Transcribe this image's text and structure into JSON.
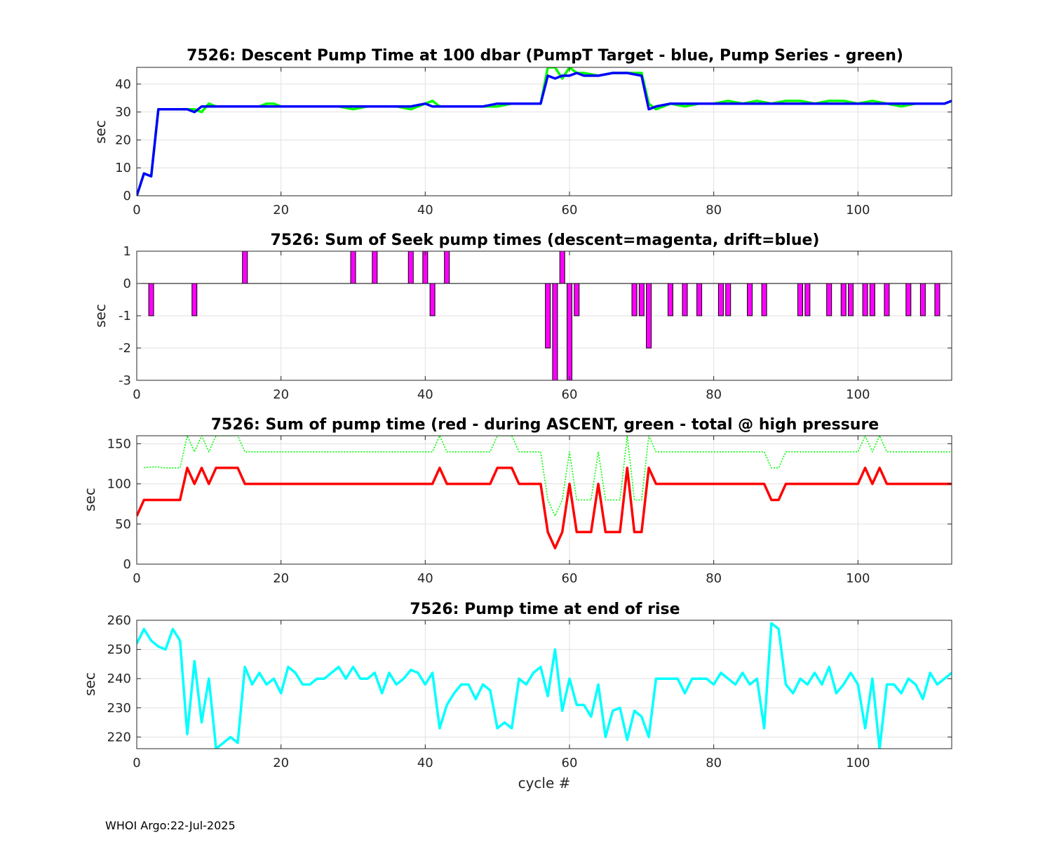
{
  "footer": "WHOI Argo:22-Jul-2025",
  "colors": {
    "target": "#0000ff",
    "pump_series": "#00ff00",
    "descent": "#ff00ff",
    "ascent": "#ff0000",
    "total_high_pressure": "#00ff00",
    "end_of_rise": "#00ffff"
  },
  "chart_data": [
    {
      "type": "line",
      "title": "7526: Descent Pump Time at 100 dbar (PumpT Target - blue, Pump Series - green)",
      "xlabel": "",
      "ylabel": "sec",
      "xlim": [
        0,
        113
      ],
      "ylim": [
        0,
        46
      ],
      "xticks": [
        0,
        20,
        40,
        60,
        80,
        100
      ],
      "yticks": [
        0,
        10,
        20,
        30,
        40
      ],
      "grid": true,
      "series": [
        {
          "name": "Pump Series",
          "color": "#00ff00",
          "x": [
            0,
            1,
            2,
            3,
            4,
            5,
            6,
            7,
            8,
            9,
            10,
            11,
            12,
            13,
            14,
            15,
            16,
            17,
            18,
            19,
            20,
            22,
            24,
            26,
            28,
            30,
            32,
            34,
            36,
            38,
            40,
            41,
            42,
            44,
            46,
            48,
            50,
            52,
            54,
            56,
            57,
            58,
            59,
            60,
            61,
            62,
            64,
            66,
            68,
            70,
            71,
            72,
            74,
            76,
            78,
            80,
            82,
            84,
            86,
            88,
            90,
            92,
            94,
            96,
            98,
            100,
            102,
            104,
            106,
            108,
            110,
            112,
            113
          ],
          "y": [
            0,
            8,
            7,
            31,
            31,
            31,
            31,
            31,
            31,
            30,
            33,
            32,
            32,
            32,
            32,
            32,
            32,
            32,
            33,
            33,
            32,
            32,
            32,
            32,
            32,
            31,
            32,
            32,
            32,
            31,
            33,
            34,
            32,
            32,
            32,
            32,
            32,
            33,
            33,
            33,
            46,
            46,
            42,
            46,
            44,
            44,
            43,
            44,
            44,
            44,
            33,
            31,
            33,
            32,
            33,
            33,
            34,
            33,
            34,
            33,
            34,
            34,
            33,
            34,
            34,
            33,
            34,
            33,
            32,
            33,
            33,
            33,
            34
          ]
        },
        {
          "name": "PumpT Target",
          "color": "#0000ff",
          "x": [
            0,
            1,
            2,
            3,
            4,
            5,
            6,
            7,
            8,
            9,
            10,
            11,
            12,
            13,
            14,
            15,
            16,
            17,
            18,
            19,
            20,
            22,
            24,
            26,
            28,
            30,
            32,
            34,
            36,
            38,
            40,
            41,
            42,
            44,
            46,
            48,
            50,
            52,
            54,
            56,
            57,
            58,
            59,
            60,
            61,
            62,
            64,
            66,
            68,
            70,
            71,
            72,
            74,
            76,
            78,
            80,
            82,
            84,
            86,
            88,
            90,
            92,
            94,
            96,
            98,
            100,
            102,
            104,
            106,
            108,
            110,
            112,
            113
          ],
          "y": [
            0,
            8,
            7,
            31,
            31,
            31,
            31,
            31,
            30,
            32,
            32,
            32,
            32,
            32,
            32,
            32,
            32,
            32,
            32,
            32,
            32,
            32,
            32,
            32,
            32,
            32,
            32,
            32,
            32,
            32,
            33,
            32,
            32,
            32,
            32,
            32,
            33,
            33,
            33,
            33,
            43,
            42,
            43,
            43,
            44,
            43,
            43,
            44,
            44,
            43,
            31,
            32,
            33,
            33,
            33,
            33,
            33,
            33,
            33,
            33,
            33,
            33,
            33,
            33,
            33,
            33,
            33,
            33,
            33,
            33,
            33,
            33,
            34
          ]
        }
      ]
    },
    {
      "type": "bar",
      "title": "7526: Sum of Seek pump times (descent=magenta, drift=blue)",
      "xlabel": "",
      "ylabel": "sec",
      "xlim": [
        0,
        113
      ],
      "ylim": [
        -3,
        1
      ],
      "xticks": [
        0,
        20,
        40,
        60,
        80,
        100
      ],
      "yticks": [
        1,
        0,
        -1,
        -2,
        -3
      ],
      "grid": true,
      "series": [
        {
          "name": "descent",
          "color": "#ff00ff",
          "x": [
            2,
            8,
            15,
            30,
            33,
            38,
            40,
            41,
            43,
            57,
            58,
            59,
            60,
            61,
            69,
            70,
            71,
            74,
            76,
            78,
            81,
            82,
            85,
            87,
            92,
            93,
            96,
            98,
            99,
            101,
            102,
            104,
            107,
            109,
            111
          ],
          "y": [
            -1,
            -1,
            1,
            1,
            1,
            1,
            1,
            -1,
            1,
            -2,
            -3,
            1,
            -3,
            -1,
            -1,
            -1,
            -2,
            -1,
            -1,
            -1,
            -1,
            -1,
            -1,
            -1,
            -1,
            -1,
            -1,
            -1,
            -1,
            -1,
            -1,
            -1,
            -1,
            -1,
            -1
          ]
        }
      ]
    },
    {
      "type": "line",
      "title": "7526: Sum of pump time (red - during ASCENT, green - total @ high pressure",
      "xlabel": "",
      "ylabel": "sec",
      "xlim": [
        0,
        113
      ],
      "ylim": [
        0,
        160
      ],
      "xticks": [
        0,
        20,
        40,
        60,
        80,
        100
      ],
      "yticks": [
        0,
        50,
        100,
        150
      ],
      "grid": true,
      "series": [
        {
          "name": "total @ high pressure",
          "color": "#00ff00",
          "dashed": true,
          "x": [
            1,
            2,
            3,
            4,
            5,
            6,
            7,
            8,
            9,
            10,
            11,
            12,
            13,
            14,
            15,
            16,
            17,
            18,
            19,
            20,
            25,
            30,
            35,
            40,
            41,
            42,
            43,
            44,
            45,
            46,
            47,
            48,
            49,
            50,
            51,
            52,
            53,
            54,
            55,
            56,
            57,
            58,
            59,
            60,
            61,
            62,
            63,
            64,
            65,
            66,
            67,
            68,
            69,
            70,
            71,
            72,
            73,
            74,
            75,
            80,
            85,
            87,
            88,
            89,
            90,
            95,
            100,
            101,
            102,
            103,
            104,
            105,
            110,
            113
          ],
          "y": [
            120,
            121,
            121,
            120,
            120,
            120,
            160,
            140,
            160,
            140,
            160,
            160,
            160,
            160,
            140,
            140,
            140,
            140,
            140,
            140,
            140,
            140,
            140,
            140,
            140,
            160,
            140,
            140,
            140,
            140,
            140,
            140,
            140,
            160,
            160,
            160,
            140,
            140,
            140,
            140,
            80,
            60,
            80,
            140,
            80,
            80,
            80,
            140,
            80,
            80,
            80,
            160,
            80,
            80,
            160,
            140,
            140,
            140,
            140,
            140,
            140,
            140,
            120,
            120,
            140,
            140,
            140,
            160,
            140,
            160,
            140,
            140,
            140,
            140
          ]
        },
        {
          "name": "during ASCENT",
          "color": "#ff0000",
          "dashed": false,
          "x": [
            0,
            1,
            2,
            3,
            4,
            5,
            6,
            7,
            8,
            9,
            10,
            11,
            12,
            13,
            14,
            15,
            16,
            17,
            18,
            19,
            20,
            25,
            30,
            35,
            40,
            41,
            42,
            43,
            44,
            45,
            46,
            47,
            48,
            49,
            50,
            51,
            52,
            53,
            54,
            55,
            56,
            57,
            58,
            59,
            60,
            61,
            62,
            63,
            64,
            65,
            66,
            67,
            68,
            69,
            70,
            71,
            72,
            73,
            74,
            75,
            80,
            85,
            87,
            88,
            89,
            90,
            95,
            100,
            101,
            102,
            103,
            104,
            105,
            110,
            113
          ],
          "y": [
            60,
            80,
            80,
            80,
            80,
            80,
            80,
            120,
            100,
            120,
            100,
            120,
            120,
            120,
            120,
            100,
            100,
            100,
            100,
            100,
            100,
            100,
            100,
            100,
            100,
            100,
            120,
            100,
            100,
            100,
            100,
            100,
            100,
            100,
            120,
            120,
            120,
            100,
            100,
            100,
            100,
            40,
            20,
            40,
            100,
            40,
            40,
            40,
            100,
            40,
            40,
            40,
            120,
            40,
            40,
            120,
            100,
            100,
            100,
            100,
            100,
            100,
            100,
            80,
            80,
            100,
            100,
            100,
            120,
            100,
            120,
            100,
            100,
            100,
            100
          ]
        }
      ]
    },
    {
      "type": "line",
      "title": "7526: Pump time at end of rise",
      "xlabel": "cycle #",
      "ylabel": "sec",
      "xlim": [
        0,
        113
      ],
      "ylim": [
        216,
        260
      ],
      "xticks": [
        0,
        20,
        40,
        60,
        80,
        100
      ],
      "yticks": [
        220,
        230,
        240,
        250,
        260
      ],
      "grid": true,
      "series": [
        {
          "name": "end of rise",
          "color": "#00ffff",
          "x": [
            0,
            1,
            2,
            3,
            4,
            5,
            6,
            7,
            8,
            9,
            10,
            11,
            12,
            13,
            14,
            15,
            16,
            17,
            18,
            19,
            20,
            21,
            22,
            23,
            24,
            25,
            26,
            27,
            28,
            29,
            30,
            31,
            32,
            33,
            34,
            35,
            36,
            37,
            38,
            39,
            40,
            41,
            42,
            43,
            44,
            45,
            46,
            47,
            48,
            49,
            50,
            51,
            52,
            53,
            54,
            55,
            56,
            57,
            58,
            59,
            60,
            61,
            62,
            63,
            64,
            65,
            66,
            67,
            68,
            69,
            70,
            71,
            72,
            73,
            74,
            75,
            76,
            77,
            78,
            79,
            80,
            81,
            82,
            83,
            84,
            85,
            86,
            87,
            88,
            89,
            90,
            91,
            92,
            93,
            94,
            95,
            96,
            97,
            98,
            99,
            100,
            101,
            102,
            103,
            104,
            105,
            106,
            107,
            108,
            109,
            110,
            111,
            112,
            113
          ],
          "y": [
            252,
            257,
            253,
            251,
            250,
            257,
            253,
            221,
            246,
            225,
            240,
            216,
            218,
            220,
            218,
            244,
            238,
            242,
            238,
            240,
            235,
            244,
            242,
            238,
            238,
            240,
            240,
            242,
            244,
            240,
            244,
            240,
            240,
            242,
            235,
            242,
            238,
            240,
            243,
            242,
            238,
            242,
            223,
            231,
            235,
            238,
            238,
            233,
            238,
            236,
            223,
            225,
            223,
            240,
            238,
            242,
            244,
            234,
            250,
            229,
            240,
            231,
            231,
            227,
            238,
            220,
            229,
            230,
            219,
            229,
            227,
            220,
            240,
            240,
            240,
            240,
            235,
            240,
            240,
            240,
            238,
            242,
            240,
            238,
            242,
            238,
            240,
            223,
            259,
            257,
            238,
            235,
            240,
            238,
            242,
            238,
            244,
            235,
            238,
            242,
            238,
            223,
            240,
            216,
            238,
            238,
            235,
            240,
            238,
            233,
            242,
            238,
            240,
            242
          ]
        }
      ]
    }
  ]
}
